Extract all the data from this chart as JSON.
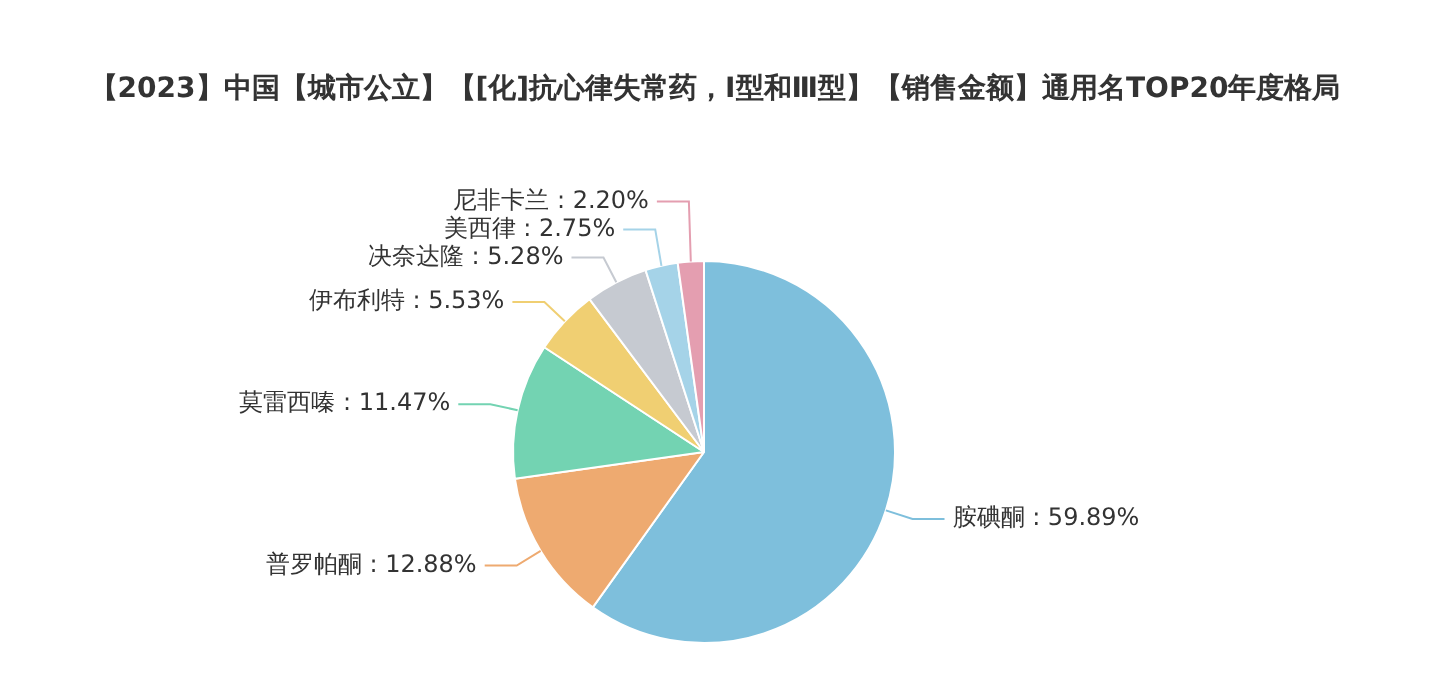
{
  "chart_data": {
    "type": "pie",
    "title": "【2023】中国【城市公立】【[化]抗心律失常药，Ⅰ型和Ⅲ型】【销售金额】通用名TOP20年度格局",
    "categories": [
      "胺碘酮",
      "普罗帕酮",
      "莫雷西嗪",
      "伊布利特",
      "决奈达隆",
      "美西律",
      "尼非卡兰"
    ],
    "values": [
      59.89,
      12.88,
      11.47,
      5.53,
      5.28,
      2.75,
      2.2
    ],
    "value_labels": [
      "59.89%",
      "12.88%",
      "11.47%",
      "5.53%",
      "5.28%",
      "2.75%",
      "2.20%"
    ],
    "colors": [
      "#7ebfdc",
      "#eeaa70",
      "#73d3b2",
      "#f0cf72",
      "#c6cad1",
      "#a5d3e8",
      "#e49eb0"
    ],
    "legend": false
  }
}
